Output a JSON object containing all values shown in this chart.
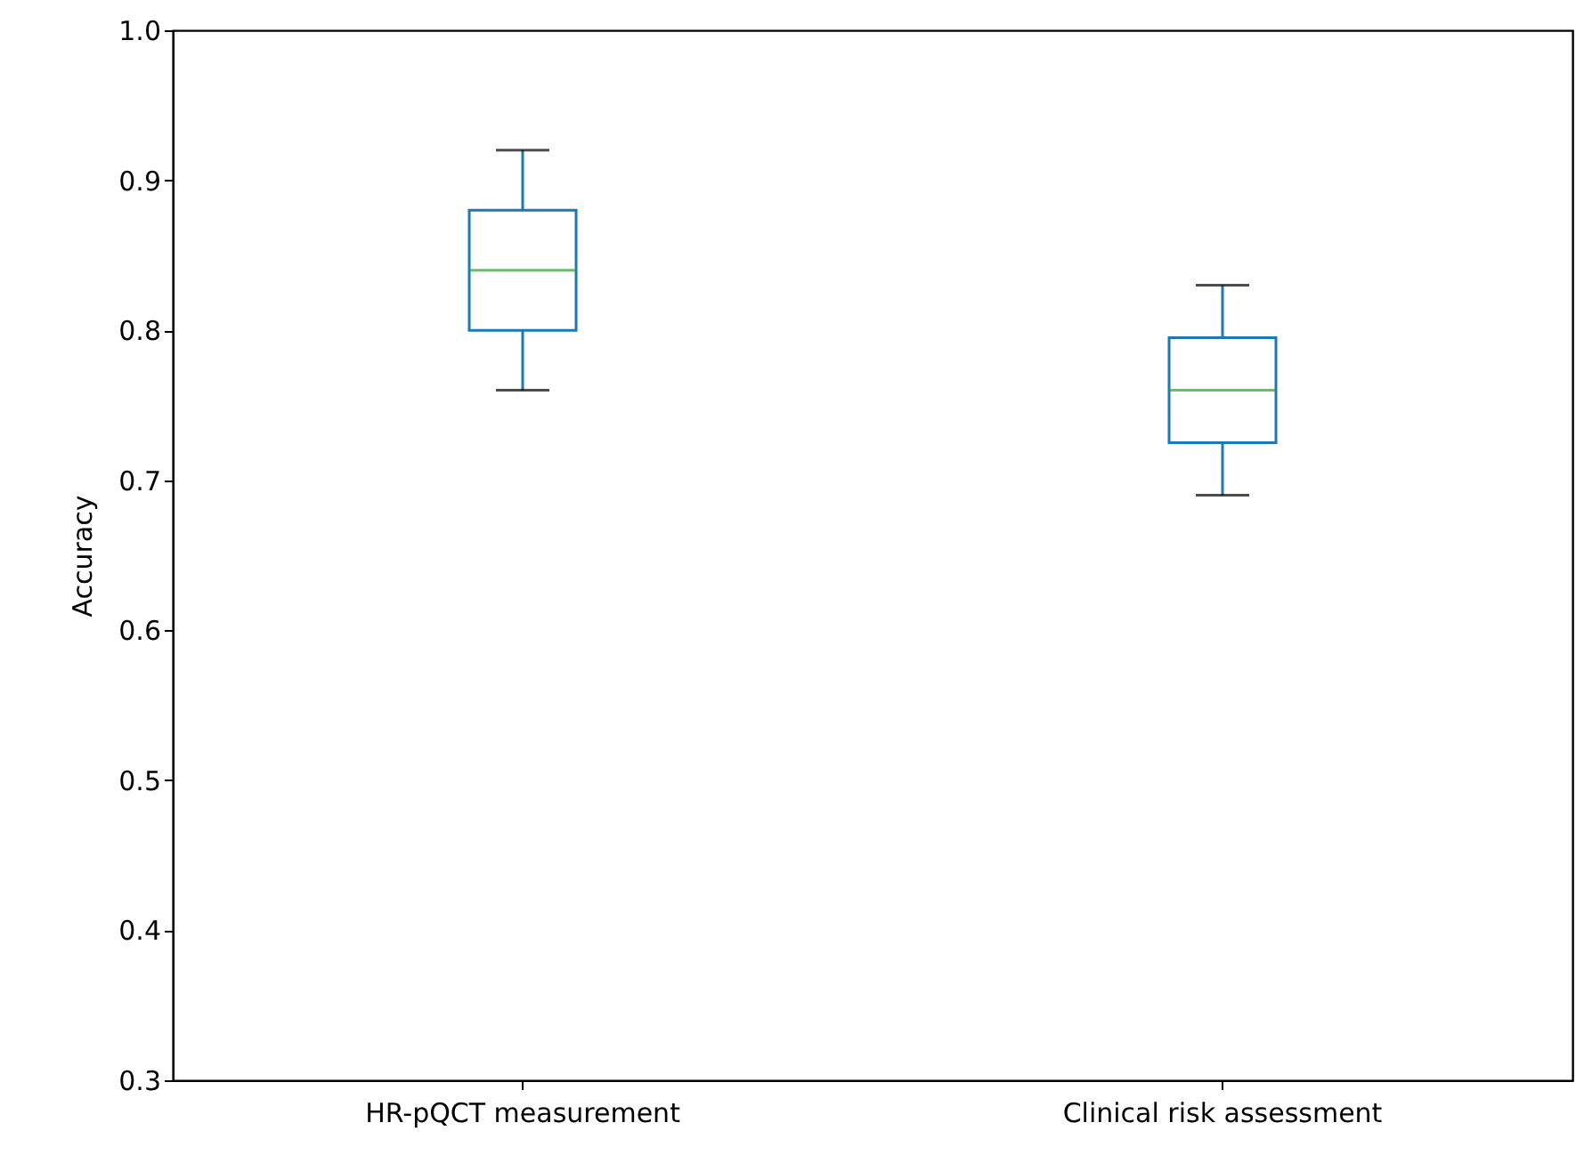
{
  "chart_data": {
    "type": "box",
    "ylabel": "Accuracy",
    "categories": [
      "HR-pQCT measurement",
      "Clinical risk assessment"
    ],
    "color": "#1f77b4",
    "boxes": [
      {
        "low": 0.76,
        "q1": 0.8,
        "median": 0.84,
        "q3": 0.88,
        "high": 0.92
      },
      {
        "low": 0.69,
        "q1": 0.725,
        "median": 0.76,
        "q3": 0.795,
        "high": 0.83
      }
    ],
    "ylim": [
      0.3,
      1.0
    ],
    "yticks": [
      0.3,
      0.4,
      0.5,
      0.6,
      0.7,
      0.8,
      0.9,
      {
        "value": 1,
        "label": "1.0"
      }
    ],
    "grid": false
  }
}
